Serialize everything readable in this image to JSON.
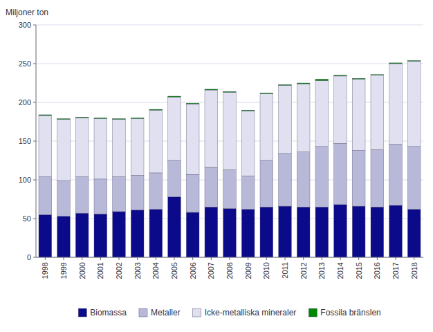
{
  "chart_data": {
    "type": "bar",
    "stacked": true,
    "y_label": "Miljoner ton",
    "categories": [
      "1998",
      "1999",
      "2000",
      "2001",
      "2002",
      "2003",
      "2004",
      "2005",
      "2006",
      "2007",
      "2008",
      "2009",
      "2010",
      "2011",
      "2012",
      "2013",
      "2014",
      "2015",
      "2016",
      "2017",
      "2018"
    ],
    "series": [
      {
        "name": "Biomassa",
        "color": "#0a0a8a",
        "values": [
          55,
          53,
          57,
          56,
          59,
          61,
          62,
          78,
          58,
          65,
          63,
          62,
          65,
          66,
          65,
          65,
          68,
          66,
          65,
          67,
          62
        ]
      },
      {
        "name": "Metaller",
        "color": "#b8b8d8",
        "values": [
          49,
          46,
          47,
          45,
          45,
          45,
          47,
          47,
          49,
          51,
          50,
          43,
          60,
          68,
          71,
          78,
          79,
          72,
          74,
          79,
          81
        ]
      },
      {
        "name": "Icke-metalliska mineraler",
        "color": "#e0e0f0",
        "values": [
          79,
          79,
          76,
          78,
          74,
          73,
          81,
          82,
          91,
          100,
          100,
          84,
          86,
          88,
          88,
          85,
          87,
          92,
          96,
          104,
          110
        ]
      },
      {
        "name": "Fossila bränslen",
        "color": "#008800",
        "values": [
          1,
          1,
          1,
          1,
          1,
          1,
          1,
          1,
          1,
          1,
          1,
          1,
          1,
          1,
          1,
          2,
          1,
          1,
          1,
          1,
          1
        ]
      }
    ],
    "ylim": [
      0,
      300
    ],
    "yticks": [
      0,
      50,
      100,
      150,
      200,
      250,
      300
    ],
    "grid": true,
    "legend": "bottom"
  }
}
